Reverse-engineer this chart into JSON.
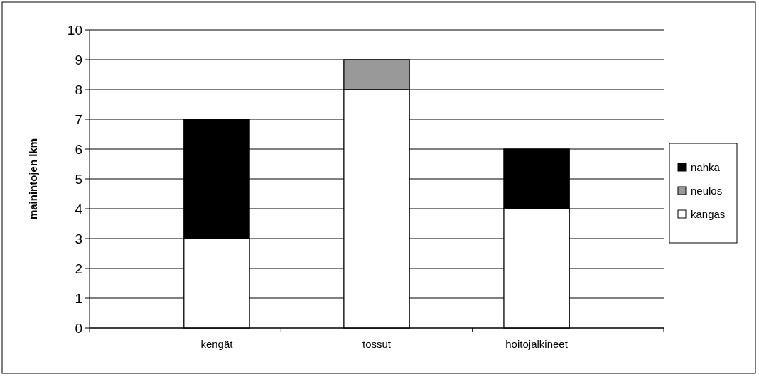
{
  "chart_data": {
    "type": "bar",
    "stacked": true,
    "ylabel": "mainintojen lkm",
    "categories": [
      "kengät",
      "tossut",
      "hoitojalkineet"
    ],
    "series": [
      {
        "name": "kangas",
        "color": "#ffffff",
        "values": [
          3,
          8,
          4
        ]
      },
      {
        "name": "neulos",
        "color": "#999999",
        "values": [
          null,
          1,
          null
        ]
      },
      {
        "name": "nahka",
        "color": "#000000",
        "values": [
          4,
          null,
          2
        ]
      }
    ],
    "ylim": [
      0,
      10
    ],
    "yticks": [
      0,
      1,
      2,
      3,
      4,
      5,
      6,
      7,
      8,
      9,
      10
    ],
    "grid": "y",
    "legend": "right"
  }
}
